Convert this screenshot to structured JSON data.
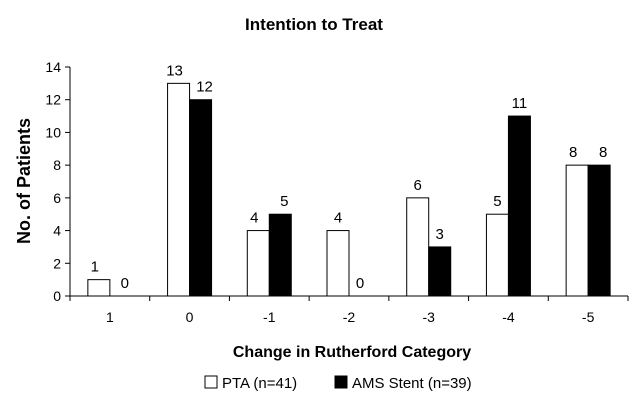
{
  "chart_data": {
    "type": "bar",
    "title": "Intention to Treat",
    "xlabel": "Change in Rutherford Category",
    "ylabel": "No. of Patients",
    "categories": [
      "1",
      "0",
      "-1",
      "-2",
      "-3",
      "-4",
      "-5"
    ],
    "series": [
      {
        "name": "PTA (n=41)",
        "values": [
          1,
          13,
          4,
          4,
          6,
          5,
          8
        ],
        "color": "#ffffff"
      },
      {
        "name": "AMS Stent (n=39)",
        "values": [
          0,
          12,
          5,
          0,
          3,
          11,
          8
        ],
        "color": "#000000"
      }
    ],
    "ylim": [
      0,
      14
    ],
    "yticks": [
      "0",
      "2",
      "4",
      "6",
      "8",
      "10",
      "12",
      "14"
    ],
    "grid": false,
    "legend": "bottom",
    "data_labels": true
  }
}
